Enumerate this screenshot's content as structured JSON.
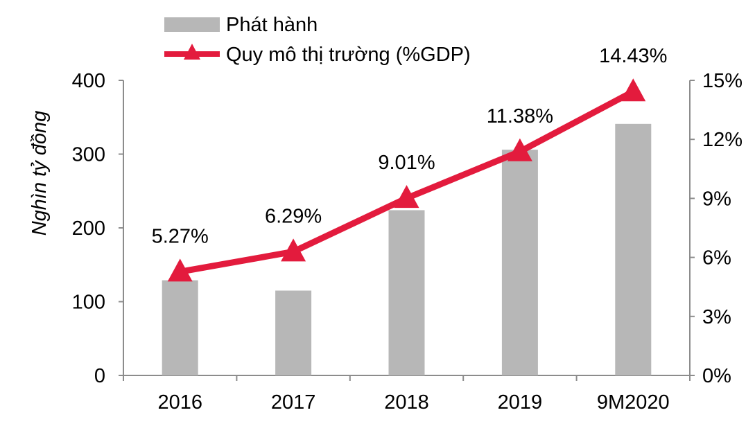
{
  "chart_data": {
    "type": "bar+line",
    "categories": [
      "2016",
      "2017",
      "2018",
      "2019",
      "9M2020"
    ],
    "series": [
      {
        "name": "Phát hành",
        "type": "bar",
        "axis": "left",
        "values": [
          129,
          115,
          224,
          306,
          341
        ],
        "color": "#b7b7b7"
      },
      {
        "name": "Quy mô thị trường (%GDP)",
        "type": "line",
        "axis": "right",
        "marker": "triangle",
        "values": [
          5.27,
          6.29,
          9.01,
          11.38,
          14.43
        ],
        "labels": [
          "5.27%",
          "6.29%",
          "9.01%",
          "11.38%",
          "14.43%"
        ],
        "color": "#e31b3d"
      }
    ],
    "ylabel": "Nghìn tỷ đồng",
    "ylim": [
      0,
      400
    ],
    "yticks": [
      "0",
      "100",
      "200",
      "300",
      "400"
    ],
    "y2lim": [
      0,
      15
    ],
    "y2ticks": [
      "0%",
      "3%",
      "6%",
      "9%",
      "12%",
      "15%"
    ],
    "legend": "top",
    "grid": false
  }
}
